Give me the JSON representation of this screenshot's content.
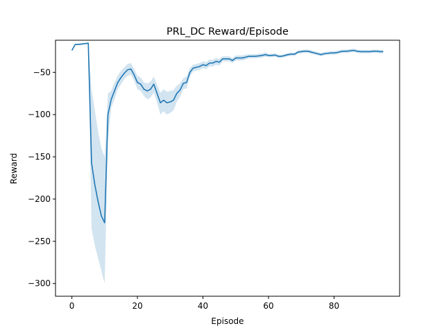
{
  "chart_data": {
    "type": "line",
    "title": "PRL_DC Reward/Episode",
    "xlabel": "Episode",
    "ylabel": "Reward",
    "xlim": [
      -5,
      100
    ],
    "ylim": [
      -315,
      -12
    ],
    "xticks": [
      0,
      20,
      40,
      60,
      80
    ],
    "yticks": [
      -50,
      -100,
      -150,
      -200,
      -250,
      -300
    ],
    "grid": false,
    "legend": "none",
    "colors": {
      "line": "#1f77b4",
      "band": "#1f77b4"
    },
    "series": [
      {
        "x": [
          0,
          1,
          2,
          3,
          4,
          5,
          6,
          7,
          8,
          9,
          10,
          11,
          12,
          13,
          14,
          15,
          16,
          17,
          18,
          19,
          20,
          21,
          22,
          23,
          24,
          25,
          26,
          27,
          28,
          29,
          30,
          31,
          32,
          33,
          34,
          35,
          36,
          37,
          38,
          39,
          40,
          41,
          42,
          43,
          44,
          45,
          46,
          47,
          48,
          49,
          50,
          51,
          52,
          53,
          54,
          55,
          56,
          57,
          58,
          59,
          60,
          61,
          62,
          63,
          64,
          65,
          66,
          67,
          68,
          69,
          70,
          71,
          72,
          73,
          74,
          75,
          76,
          77,
          78,
          79,
          80,
          81,
          82,
          83,
          84,
          85,
          86,
          87,
          88,
          89,
          90,
          91,
          92,
          93,
          94,
          95
        ],
        "y": [
          -24,
          -17,
          -17,
          -16.5,
          -16,
          -15.5,
          -157,
          -183,
          -203,
          -220,
          -228,
          -100,
          -82,
          -72,
          -62,
          -56,
          -51,
          -47,
          -46,
          -53,
          -62,
          -64,
          -70,
          -72,
          -70,
          -64,
          -75,
          -86,
          -83,
          -86,
          -85,
          -83,
          -75,
          -71,
          -63,
          -62,
          -50,
          -45,
          -44,
          -43,
          -41,
          -42,
          -39,
          -39,
          -37,
          -38,
          -34,
          -34,
          -34,
          -36,
          -33,
          -33,
          -33,
          -32,
          -31,
          -31,
          -31,
          -30.5,
          -30,
          -29,
          -30,
          -30,
          -29.5,
          -31,
          -31,
          -30,
          -29,
          -28.5,
          -28.5,
          -26,
          -25.5,
          -25,
          -25,
          -26,
          -27,
          -28,
          -29,
          -28,
          -27.5,
          -27,
          -27,
          -26.5,
          -25.5,
          -25,
          -25,
          -24.5,
          -24,
          -25,
          -25.5,
          -25.5,
          -25.5,
          -25.5,
          -25,
          -25,
          -25.5,
          -25.5
        ],
        "lower": [
          -25,
          -18,
          -18,
          -17.5,
          -17,
          -16.5,
          -235,
          -255,
          -270,
          -285,
          -300,
          -130,
          -92,
          -82,
          -70,
          -64,
          -58,
          -54,
          -53,
          -60,
          -70,
          -72,
          -78,
          -82,
          -80,
          -74,
          -86,
          -100,
          -96,
          -100,
          -98,
          -95,
          -85,
          -79,
          -70,
          -69,
          -55,
          -49,
          -48,
          -47,
          -45,
          -46,
          -43,
          -43,
          -41,
          -42,
          -37,
          -37,
          -37,
          -39,
          -36,
          -36,
          -36,
          -35,
          -33.5,
          -33.5,
          -33.5,
          -33,
          -32.5,
          -31.5,
          -32,
          -32,
          -31.5,
          -33,
          -33,
          -32,
          -31,
          -30.5,
          -30.5,
          -28,
          -27.5,
          -27,
          -27,
          -28,
          -29,
          -30,
          -31,
          -30,
          -29.5,
          -29,
          -29,
          -28.5,
          -27.5,
          -27,
          -27,
          -26.5,
          -26,
          -27,
          -27.5,
          -27.5,
          -27.5,
          -27.5,
          -27,
          -27,
          -27.5,
          -27.5
        ],
        "upper": [
          -23,
          -16,
          -16,
          -15.5,
          -15,
          -14.5,
          -70,
          -95,
          -120,
          -140,
          -150,
          -75,
          -72,
          -62,
          -54,
          -48,
          -44,
          -40,
          -39,
          -46,
          -54,
          -56,
          -62,
          -63,
          -61,
          -55,
          -65,
          -74,
          -70,
          -73,
          -72,
          -71,
          -66,
          -63,
          -57,
          -55,
          -45,
          -41,
          -40,
          -39,
          -37,
          -38,
          -35,
          -35,
          -33,
          -34,
          -31,
          -31,
          -31,
          -33,
          -30,
          -30,
          -30,
          -29,
          -28.5,
          -28.5,
          -28.5,
          -28,
          -27.5,
          -26.5,
          -28,
          -28,
          -27.5,
          -29,
          -29,
          -28,
          -27,
          -26.5,
          -26.5,
          -24,
          -23.5,
          -23,
          -23,
          -24,
          -25,
          -26,
          -27,
          -26,
          -25.5,
          -25,
          -25,
          -24.5,
          -23.5,
          -23,
          -23,
          -22.5,
          -22,
          -23,
          -23.5,
          -23.5,
          -23.5,
          -23.5,
          -23,
          -23,
          -23.5,
          -23.5
        ]
      }
    ]
  }
}
